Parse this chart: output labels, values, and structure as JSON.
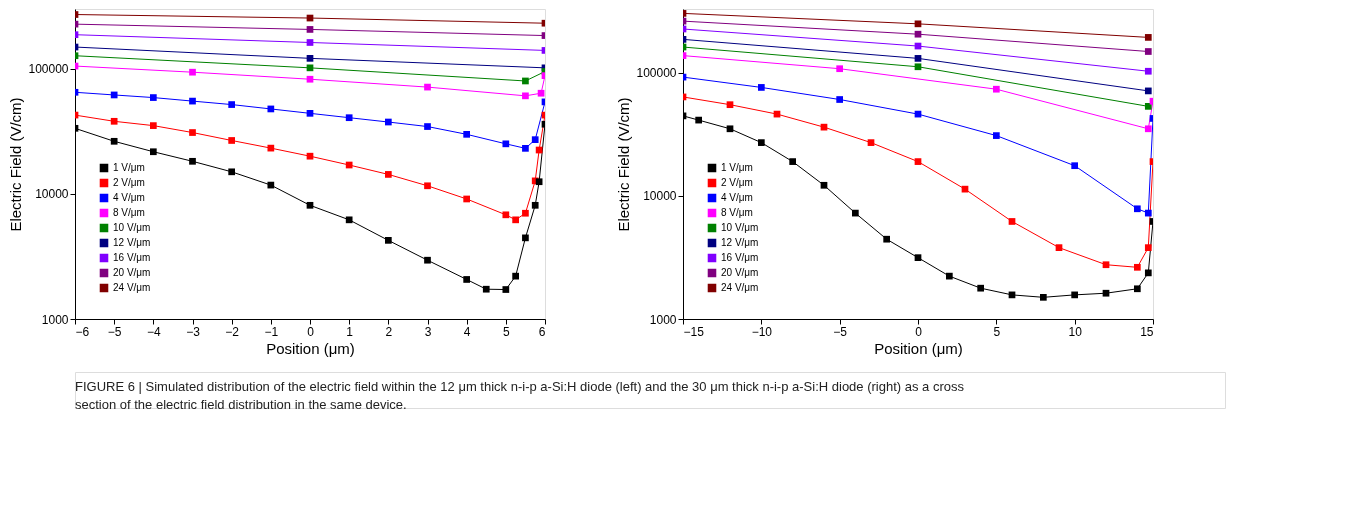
{
  "chart_data": [
    {
      "type": "line",
      "xlabel": "Position (μm)",
      "ylabel": "Electric Field (V/cm)",
      "log": "y",
      "marker": "square",
      "legend": "bottom left",
      "grid": false,
      "xlim": [
        -6,
        6
      ],
      "xticks": [
        -6,
        -5,
        -4,
        -3,
        -2,
        -1,
        0,
        1,
        2,
        3,
        4,
        5,
        6
      ],
      "ylim": [
        1000,
        300000
      ],
      "yticks": [
        1000,
        10000,
        100000
      ],
      "annotations": [
        "FIGURE 6 | Simulated distribution of the electric field within the 12 μm thick n-i-p a-Si:H diode (left) and the 30 μm thick n-i-p a-Si:H diode (right) as a cross section of the electric field distribution in the same device."
      ],
      "series": [
        {
          "name": "1 V/μm",
          "color": "#000000",
          "x": [
            -6,
            -5,
            -4,
            -3,
            -2,
            -1,
            0,
            1,
            2,
            3,
            4,
            4.5,
            5,
            5.25,
            5.5,
            5.75,
            5.85,
            6
          ],
          "values": [
            33400,
            26300,
            21700,
            18200,
            15000,
            11750,
            8100,
            6200,
            4250,
            2950,
            2070,
            1730,
            1720,
            2200,
            4450,
            8100,
            12500,
            36000
          ]
        },
        {
          "name": "2 V/μm",
          "color": "#ff0000",
          "x": [
            -6,
            -5,
            -4,
            -3,
            -2,
            -1,
            0,
            1,
            2,
            3,
            4,
            5,
            5.25,
            5.5,
            5.75,
            5.85,
            6
          ],
          "values": [
            42600,
            38000,
            35100,
            30900,
            26700,
            23200,
            20000,
            17000,
            14300,
            11600,
            9100,
            6800,
            6200,
            7000,
            12700,
            22400,
            42600
          ]
        },
        {
          "name": "4 V/μm",
          "color": "#0000ff",
          "x": [
            -6,
            -5,
            -4,
            -3,
            -2,
            -1,
            0,
            1,
            2,
            3,
            4,
            5,
            5.5,
            5.75,
            6
          ],
          "values": [
            64800,
            61700,
            58800,
            55100,
            51700,
            47700,
            44000,
            40600,
            37500,
            34500,
            29900,
            25100,
            23100,
            27100,
            54300
          ]
        },
        {
          "name": "8 V/μm",
          "color": "#ff00ff",
          "x": [
            -6,
            -3,
            0,
            3,
            5.5,
            5.9,
            6
          ],
          "values": [
            105000,
            93800,
            82400,
            71300,
            60700,
            63700,
            88000
          ]
        },
        {
          "name": "10 V/μm",
          "color": "#008000",
          "x": [
            -6,
            0,
            5.5,
            6
          ],
          "values": [
            127000,
            101600,
            79800,
            95000
          ]
        },
        {
          "name": "12 V/μm",
          "color": "#000080",
          "x": [
            -6,
            0,
            6
          ],
          "values": [
            149000,
            121000,
            101600
          ]
        },
        {
          "name": "16 V/μm",
          "color": "#8000ff",
          "x": [
            -6,
            0,
            6
          ],
          "values": [
            187000,
            162000,
            140000
          ]
        },
        {
          "name": "20 V/μm",
          "color": "#800080",
          "x": [
            -6,
            0,
            6
          ],
          "values": [
            227000,
            206000,
            184000
          ]
        },
        {
          "name": "24 V/μm",
          "color": "#800000",
          "x": [
            -6,
            0,
            6
          ],
          "values": [
            271000,
            254000,
            231000
          ]
        }
      ]
    },
    {
      "type": "line",
      "xlabel": "Position (μm)",
      "ylabel": "Electric Field (V/cm)",
      "log": "y",
      "marker": "square",
      "legend": "bottom left",
      "grid": false,
      "xlim": [
        -15,
        15
      ],
      "xticks": [
        -15,
        -10,
        -5,
        0,
        5,
        10,
        15
      ],
      "ylim": [
        1000,
        330000
      ],
      "yticks": [
        1000,
        10000,
        100000
      ],
      "series": [
        {
          "name": "1 V/μm",
          "color": "#000000",
          "x": [
            -15,
            -14,
            -12,
            -10,
            -8,
            -6,
            -4,
            -2,
            0,
            2,
            4,
            6,
            8,
            10,
            12,
            14,
            14.7,
            15
          ],
          "values": [
            44700,
            41300,
            35100,
            27100,
            19000,
            12200,
            7250,
            4450,
            3150,
            2230,
            1780,
            1570,
            1500,
            1570,
            1620,
            1760,
            2370,
            6200
          ]
        },
        {
          "name": "2 V/μm",
          "color": "#ff0000",
          "x": [
            -15,
            -12,
            -9,
            -6,
            -3,
            0,
            3,
            6,
            9,
            12,
            14,
            14.7,
            15
          ],
          "values": [
            63700,
            55100,
            46200,
            36200,
            27100,
            19000,
            11350,
            6200,
            3800,
            2760,
            2630,
            3800,
            19000
          ]
        },
        {
          "name": "4 V/μm",
          "color": "#0000ff",
          "x": [
            -15,
            -10,
            -5,
            0,
            5,
            10,
            14,
            14.7,
            15
          ],
          "values": [
            92300,
            76100,
            60700,
            46200,
            30900,
            17600,
            7860,
            7250,
            42600
          ]
        },
        {
          "name": "8 V/μm",
          "color": "#ff00ff",
          "x": [
            -15,
            -5,
            5,
            14.7,
            15
          ],
          "values": [
            138000,
            108000,
            73600,
            35100,
            58800
          ]
        },
        {
          "name": "10 V/μm",
          "color": "#008000",
          "x": [
            -15,
            0,
            14.7
          ],
          "values": [
            162000,
            112000,
            53400
          ]
        },
        {
          "name": "12 V/μm",
          "color": "#000080",
          "x": [
            -15,
            0,
            14.7
          ],
          "values": [
            187000,
            131000,
            71300
          ]
        },
        {
          "name": "16 V/μm",
          "color": "#8000ff",
          "x": [
            -15,
            0,
            14.7
          ],
          "values": [
            227000,
            165000,
            103000
          ]
        },
        {
          "name": "20 V/μm",
          "color": "#800080",
          "x": [
            -15,
            0,
            14.7
          ],
          "values": [
            263000,
            206000,
            149000
          ]
        },
        {
          "name": "24 V/μm",
          "color": "#800000",
          "x": [
            -15,
            0,
            14.7
          ],
          "values": [
            304000,
            250000,
            194000
          ]
        }
      ]
    }
  ]
}
